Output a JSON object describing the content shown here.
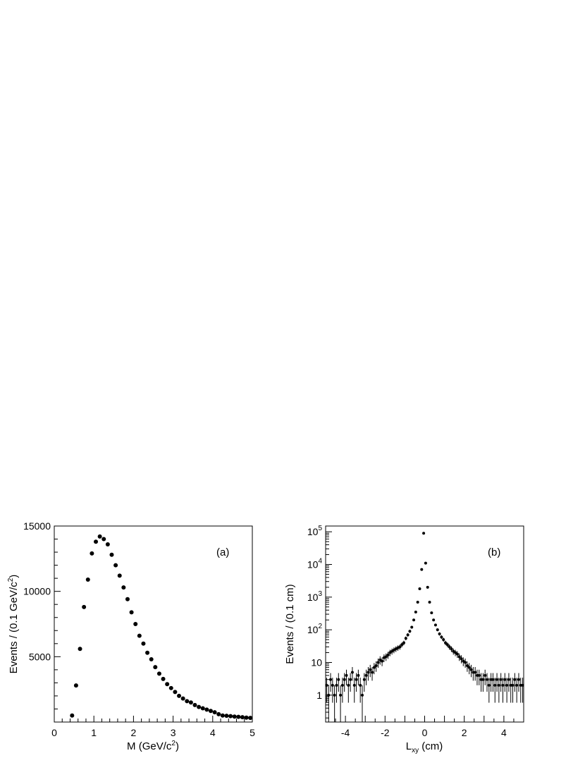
{
  "chart_data": [
    {
      "type": "scatter",
      "panel_label": "(a)",
      "xlabel": "M (GeV/c",
      "xlabel_sup": "2",
      "xlabel_tail": ")",
      "ylabel": "Events / (0.1 GeV/c",
      "ylabel_sup": "2",
      "ylabel_tail": ")",
      "xlim": [
        0,
        5
      ],
      "ylim": [
        0,
        15000
      ],
      "x_ticks": [
        "0",
        "1",
        "2",
        "3",
        "4",
        "5"
      ],
      "y_ticks": [
        "5000",
        "10000",
        "15000"
      ],
      "series": [
        {
          "x": [
            0.45,
            0.55,
            0.65,
            0.75,
            0.85,
            0.95,
            1.05,
            1.15,
            1.25,
            1.35,
            1.45,
            1.55,
            1.65,
            1.75,
            1.85,
            1.95,
            2.05,
            2.15,
            2.25,
            2.35,
            2.45,
            2.55,
            2.65,
            2.75,
            2.85,
            2.95,
            3.05,
            3.15,
            3.25,
            3.35,
            3.45,
            3.55,
            3.65,
            3.75,
            3.85,
            3.95,
            4.05,
            4.15,
            4.25,
            4.35,
            4.45,
            4.55,
            4.65,
            4.75,
            4.85,
            4.95
          ],
          "y": [
            500,
            2800,
            5600,
            8800,
            10900,
            12900,
            13800,
            14200,
            14000,
            13600,
            12800,
            12000,
            11200,
            10300,
            9400,
            8400,
            7500,
            6600,
            6000,
            5300,
            4800,
            4200,
            3700,
            3300,
            2900,
            2600,
            2300,
            2000,
            1800,
            1600,
            1500,
            1300,
            1150,
            1050,
            950,
            850,
            750,
            600,
            500,
            480,
            450,
            420,
            400,
            370,
            340,
            320
          ]
        }
      ]
    },
    {
      "type": "scatter",
      "panel_label": "(b)",
      "xlabel": "L",
      "xlabel_sub": "xy",
      "xlabel_tail": " (cm)",
      "ylabel": "Events / (0.1 cm)",
      "xlim": [
        -5,
        5
      ],
      "ylim": [
        0.15,
        150000
      ],
      "y_scale": "log",
      "x_ticks": [
        "-4",
        "-2",
        "0",
        "2",
        "4"
      ],
      "y_ticks": [
        {
          "base": "1",
          "exp": ""
        },
        {
          "base": "10",
          "exp": ""
        },
        {
          "base": "10",
          "exp": "2"
        },
        {
          "base": "10",
          "exp": "3"
        },
        {
          "base": "10",
          "exp": "4"
        },
        {
          "base": "10",
          "exp": "5"
        }
      ],
      "series": [
        {
          "x": [
            -4.95,
            -4.85,
            -4.75,
            -4.65,
            -4.55,
            -4.45,
            -4.35,
            -4.25,
            -4.15,
            -4.05,
            -3.95,
            -3.85,
            -3.75,
            -3.65,
            -3.55,
            -3.45,
            -3.35,
            -3.25,
            -3.15,
            -3.05,
            -2.95,
            -2.85,
            -2.75,
            -2.65,
            -2.55,
            -2.45,
            -2.35,
            -2.25,
            -2.15,
            -2.05,
            -1.95,
            -1.85,
            -1.75,
            -1.65,
            -1.55,
            -1.45,
            -1.35,
            -1.25,
            -1.15,
            -1.05,
            -0.95,
            -0.85,
            -0.75,
            -0.65,
            -0.55,
            -0.45,
            -0.35,
            -0.25,
            -0.15,
            -0.05,
            0.05,
            0.15,
            0.25,
            0.35,
            0.45,
            0.55,
            0.65,
            0.75,
            0.85,
            0.95,
            1.05,
            1.15,
            1.25,
            1.35,
            1.45,
            1.55,
            1.65,
            1.75,
            1.85,
            1.95,
            2.05,
            2.15,
            2.25,
            2.35,
            2.45,
            2.55,
            2.65,
            2.75,
            2.85,
            2.95,
            3.05,
            3.15,
            3.25,
            3.35,
            3.45,
            3.55,
            3.65,
            3.75,
            3.85,
            3.95,
            4.05,
            4.15,
            4.25,
            4.35,
            4.45,
            4.55,
            4.65,
            4.75,
            4.85,
            4.95
          ],
          "y": [
            2,
            1,
            3,
            2,
            1,
            2,
            3,
            1,
            2,
            3,
            4,
            2,
            3,
            5,
            2,
            3,
            4,
            2,
            1,
            3,
            4,
            5,
            6,
            5,
            7,
            8,
            10,
            12,
            11,
            14,
            15,
            17,
            20,
            22,
            24,
            26,
            28,
            30,
            35,
            40,
            55,
            70,
            90,
            120,
            200,
            350,
            700,
            1800,
            7000,
            90000,
            11000,
            2000,
            700,
            330,
            200,
            140,
            100,
            75,
            60,
            50,
            40,
            35,
            30,
            26,
            22,
            20,
            18,
            15,
            13,
            11,
            10,
            8,
            7,
            6,
            5,
            5,
            4,
            4,
            3,
            3,
            4,
            3,
            2,
            3,
            3,
            2,
            3,
            2,
            3,
            2,
            3,
            2,
            3,
            2,
            2,
            3,
            2,
            3,
            2,
            2
          ]
        }
      ]
    }
  ]
}
